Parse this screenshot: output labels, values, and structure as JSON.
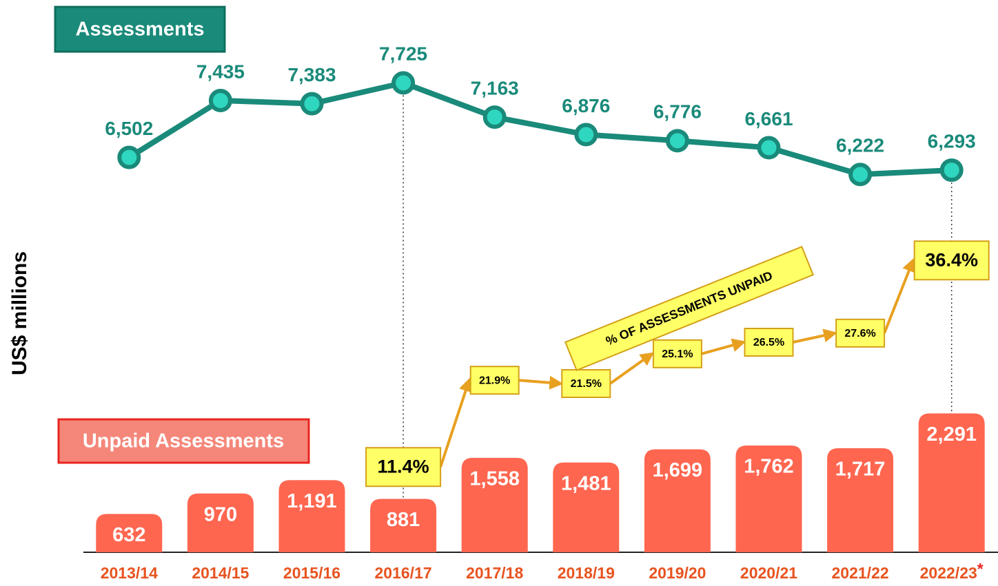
{
  "chart_data": {
    "type": "bar",
    "y_label": "US$ millions",
    "categories": [
      "2013/14",
      "2014/15",
      "2015/16",
      "2016/17",
      "2017/18",
      "2018/19",
      "2019/20",
      "2020/21",
      "2021/22",
      "2022/23"
    ],
    "category_note": "*",
    "ylim": [
      0,
      2500
    ],
    "y2lim": [
      6000,
      8000
    ],
    "y3lim": [
      0,
      40
    ],
    "series": [
      {
        "name": "Assessments",
        "type": "line",
        "axis": "y2",
        "color": "#1a8a7a",
        "values": [
          6502,
          7435,
          7383,
          7725,
          7163,
          6876,
          6776,
          6661,
          6222,
          6293
        ],
        "value_labels": [
          "6,502",
          "7,435",
          "7,383",
          "7,725",
          "7,163",
          "6,876",
          "6,776",
          "6,661",
          "6,222",
          "6,293"
        ]
      },
      {
        "name": "Unpaid Assessments",
        "type": "bar",
        "axis": "y",
        "color": "#ff6650",
        "values": [
          632,
          970,
          1191,
          881,
          1558,
          1481,
          1699,
          1762,
          1717,
          2291
        ],
        "value_labels": [
          "632",
          "970",
          "1,191",
          "881",
          "1,558",
          "1,481",
          "1,699",
          "1,762",
          "1,717",
          "2,291"
        ]
      },
      {
        "name": "% OF ASSESSMENTS UNPAID",
        "type": "boxes",
        "axis": "y3",
        "color": "#e8a020",
        "values": [
          null,
          null,
          null,
          11.4,
          21.9,
          21.5,
          25.1,
          26.5,
          27.6,
          36.4
        ],
        "value_labels": [
          null,
          null,
          null,
          "11.4%",
          "21.9%",
          "21.5%",
          "25.1%",
          "26.5%",
          "27.6%",
          "36.4%"
        ]
      }
    ]
  }
}
